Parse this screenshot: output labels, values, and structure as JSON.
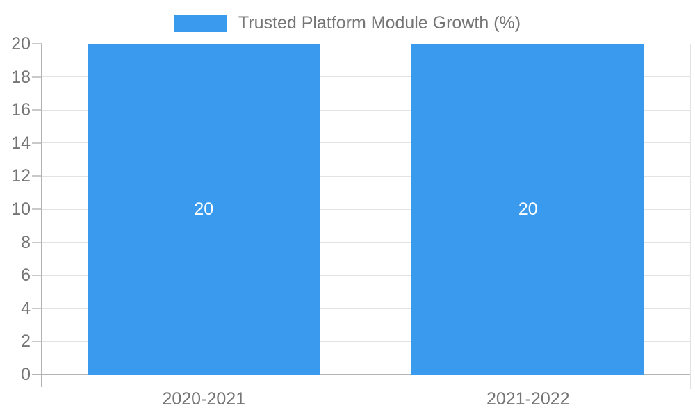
{
  "legend": {
    "label": "Trusted Platform Module Growth (%)"
  },
  "chart_data": {
    "type": "bar",
    "title": "Trusted Platform Module Growth (%)",
    "categories": [
      "2020-2021",
      "2021-2022"
    ],
    "series": [
      {
        "name": "Trusted Platform Module Growth (%)",
        "values": [
          20,
          20
        ]
      }
    ],
    "bar_value_labels": [
      "20",
      "20"
    ],
    "xlabel": "",
    "ylabel": "",
    "ylim": [
      0,
      20
    ],
    "ytick_step": 2,
    "yticks": [
      0,
      2,
      4,
      6,
      8,
      10,
      12,
      14,
      16,
      18,
      20
    ],
    "grid": true,
    "legend_position": "top-center",
    "colors": {
      "bar": "#3A9AEE",
      "grid": "#e3e3e3",
      "axis": "#b3b3b3",
      "tick": "#c9c9c9",
      "boundary_tick": "#e0e0e0",
      "text": "#757575",
      "bar_label": "#ffffff"
    }
  }
}
